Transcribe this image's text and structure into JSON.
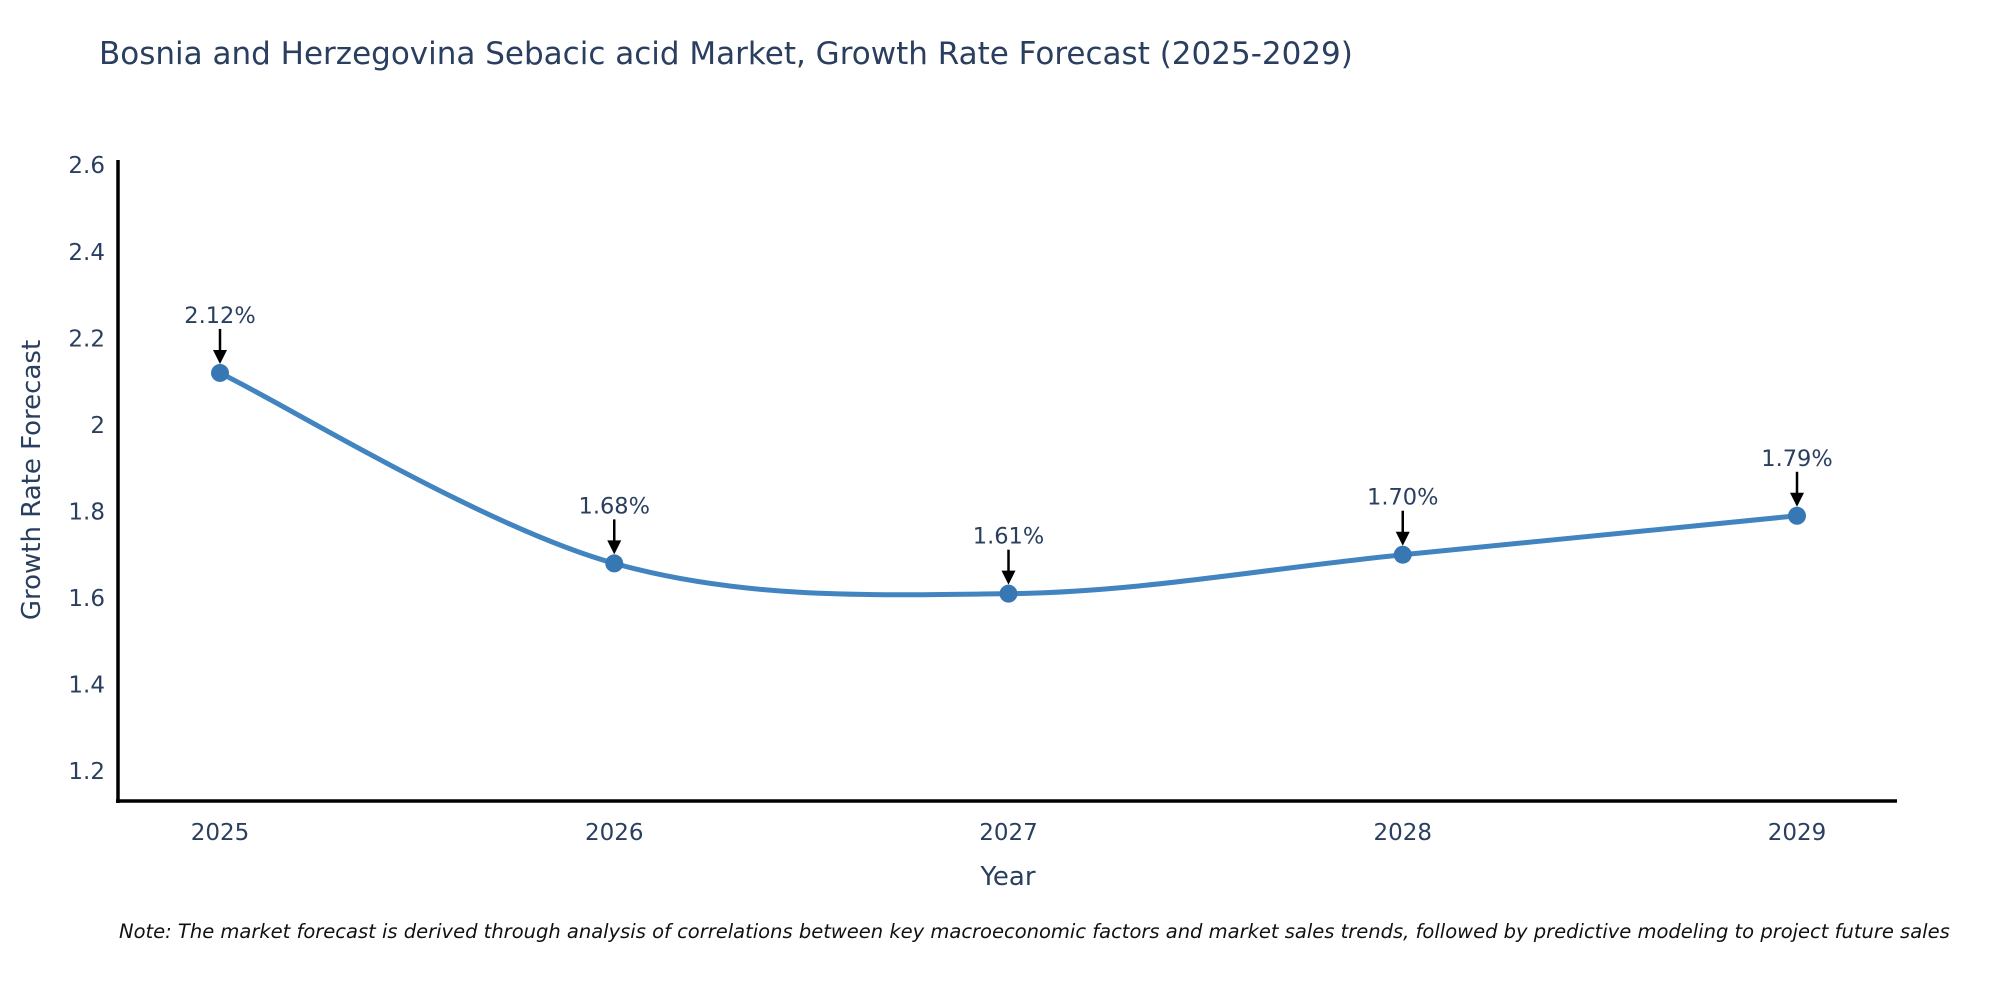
{
  "title": "Bosnia and Herzegovina Sebacic acid Market, Growth Rate Forecast (2025-2029)",
  "note": "Note: The market forecast is derived through analysis of correlations between key macroeconomic factors and market sales trends, followed by predictive modeling to project future sales",
  "chart_data": {
    "type": "line",
    "title": "Bosnia and Herzegovina Sebacic acid Market, Growth Rate Forecast (2025-2029)",
    "x": [
      "2025",
      "2026",
      "2027",
      "2028",
      "2029"
    ],
    "series": [
      {
        "name": "Growth Rate Forecast",
        "values": [
          2.12,
          1.68,
          1.61,
          1.7,
          1.79
        ]
      }
    ],
    "point_labels": [
      "2.12%",
      "1.68%",
      "1.61%",
      "1.70%",
      "1.79%"
    ],
    "xlabel": "Year",
    "ylabel": "Growth Rate Forecast",
    "ylim": [
      1.131,
      2.612
    ],
    "yticks": [
      1.2,
      1.4,
      1.6,
      1.8,
      2.0,
      2.2,
      2.4,
      2.6
    ],
    "ytick_labels": [
      "1.2",
      "1.4",
      "1.6",
      "1.8",
      "2",
      "2.2",
      "2.4",
      "2.6"
    ],
    "grid": false,
    "legend_position": "none",
    "line_shape": "spline",
    "annotations_have_arrows": true,
    "colors": {
      "line": "#4184c0",
      "marker": "#3778b4",
      "axis_line": "#000000",
      "tick_text": "#2a3f5f",
      "annotation_text": "#2a3f5f",
      "arrow": "#000000",
      "note_text": "#111111",
      "title_text": "#2a3f5f",
      "background": "#ffffff"
    }
  }
}
